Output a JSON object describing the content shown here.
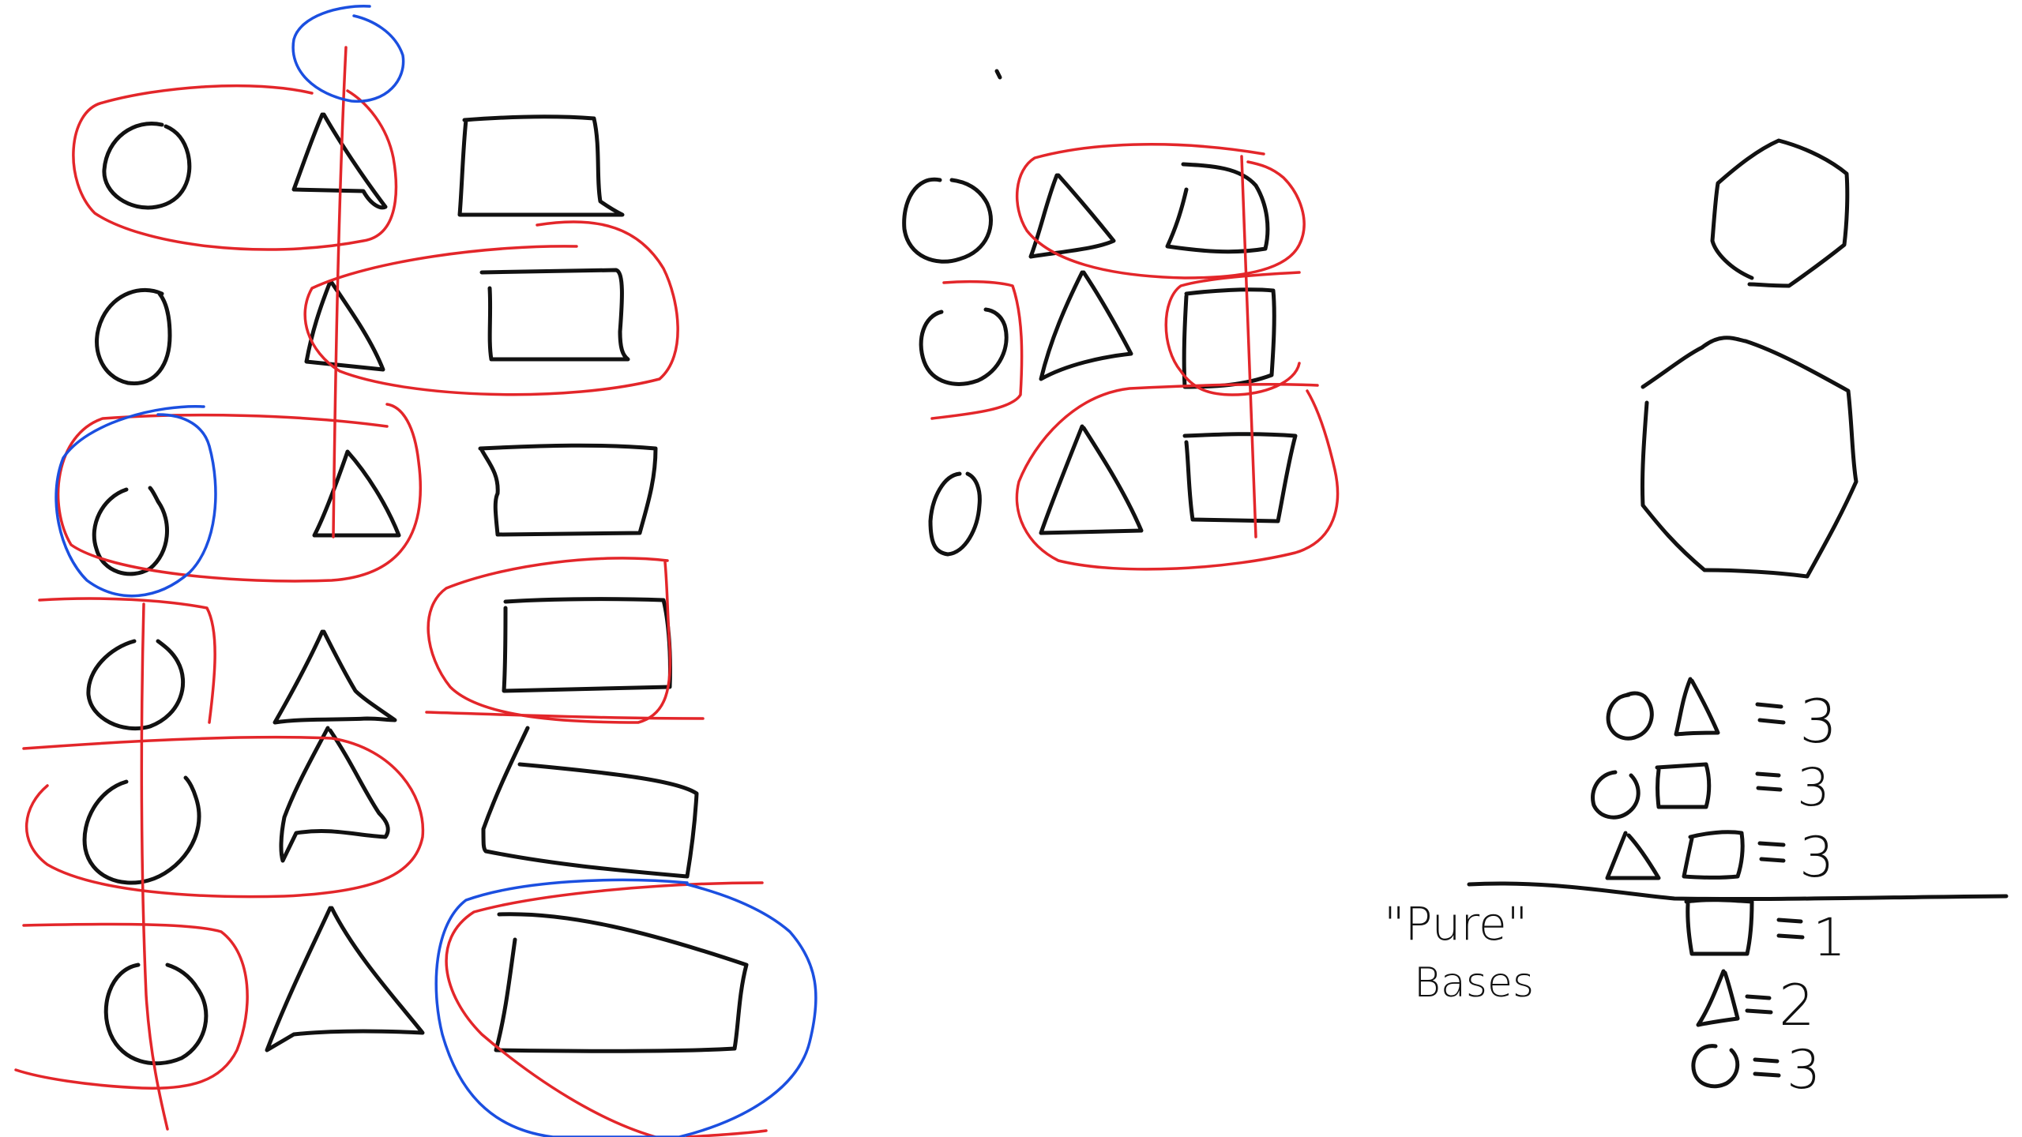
{
  "colors": {
    "black": "#111111",
    "red": "#e3262a",
    "blue": "#1b4fe0",
    "background": "#ffffff"
  },
  "legend": {
    "pairs": [
      {
        "value": "3"
      },
      {
        "value": "3"
      },
      {
        "value": "3"
      }
    ],
    "pure_label": "\"Pure\"",
    "bases_label": "Bases",
    "pure": [
      {
        "value": "1"
      },
      {
        "value": "2"
      },
      {
        "value": "3"
      }
    ],
    "equals": "="
  }
}
